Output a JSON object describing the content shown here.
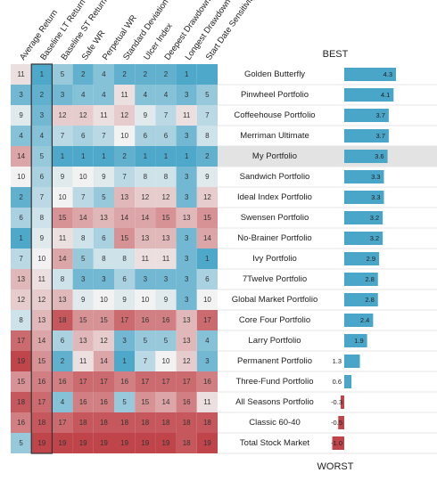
{
  "chart_data": {
    "type": "heatmap",
    "best_label": "BEST",
    "worst_label": "WORST",
    "columns": [
      "Average Return",
      "Baseline LT Return",
      "Baseline ST Return",
      "Safe WR",
      "Perpetual WR",
      "Standard Deviation",
      "Ulcer Index",
      "Deepest Drawdown",
      "Longest Drawdown",
      "Start Date Sensitivity"
    ],
    "rows": [
      {
        "name": "Golden Butterfly",
        "ranks": [
          11,
          1,
          5,
          2,
          4,
          2,
          2,
          2,
          1,
          null
        ],
        "score": 4.3
      },
      {
        "name": "Pinwheel Portfolio",
        "ranks": [
          3,
          2,
          3,
          4,
          4,
          11,
          4,
          4,
          3,
          5
        ],
        "score": 4.1
      },
      {
        "name": "Coffeehouse Portfolio",
        "ranks": [
          9,
          3,
          12,
          12,
          11,
          12,
          9,
          7,
          11,
          7
        ],
        "score": 3.7
      },
      {
        "name": "Merriman Ultimate",
        "ranks": [
          4,
          4,
          7,
          6,
          7,
          10,
          6,
          6,
          3,
          8
        ],
        "score": 3.7
      },
      {
        "name": "My Portfolio",
        "ranks": [
          14,
          5,
          1,
          1,
          1,
          2,
          1,
          1,
          1,
          2
        ],
        "score": 3.6
      },
      {
        "name": "Sandwich Portfolio",
        "ranks": [
          10,
          6,
          9,
          10,
          9,
          7,
          8,
          8,
          3,
          9
        ],
        "score": 3.3
      },
      {
        "name": "Ideal Index Portfolio",
        "ranks": [
          2,
          7,
          10,
          7,
          5,
          13,
          12,
          12,
          3,
          12
        ],
        "score": 3.3
      },
      {
        "name": "Swensen Portfolio",
        "ranks": [
          6,
          8,
          15,
          14,
          13,
          14,
          14,
          15,
          13,
          15
        ],
        "score": 3.2
      },
      {
        "name": "No-Brainer Portfolio",
        "ranks": [
          1,
          9,
          11,
          8,
          6,
          15,
          13,
          13,
          3,
          14
        ],
        "score": 3.2
      },
      {
        "name": "Ivy Portfolio",
        "ranks": [
          7,
          10,
          14,
          5,
          8,
          8,
          11,
          11,
          3,
          1
        ],
        "score": 2.9
      },
      {
        "name": "7Twelve Portfolio",
        "ranks": [
          13,
          11,
          8,
          3,
          3,
          6,
          3,
          3,
          3,
          6
        ],
        "score": 2.8
      },
      {
        "name": "Global Market Portfolio",
        "ranks": [
          12,
          12,
          13,
          9,
          10,
          9,
          10,
          9,
          3,
          10
        ],
        "score": 2.8
      },
      {
        "name": "Core Four Portfolio",
        "ranks": [
          8,
          13,
          18,
          15,
          15,
          17,
          16,
          16,
          13,
          17
        ],
        "score": 2.4
      },
      {
        "name": "Larry Portfolio",
        "ranks": [
          17,
          14,
          6,
          13,
          12,
          3,
          5,
          5,
          13,
          4
        ],
        "score": 1.9
      },
      {
        "name": "Permanent Portfolio",
        "ranks": [
          19,
          15,
          2,
          11,
          14,
          1,
          7,
          10,
          12,
          3
        ],
        "score": 1.3
      },
      {
        "name": "Three-Fund Portfolio",
        "ranks": [
          15,
          16,
          16,
          17,
          17,
          16,
          17,
          17,
          17,
          16
        ],
        "score": 0.6
      },
      {
        "name": "All Seasons Portfolio",
        "ranks": [
          18,
          17,
          4,
          16,
          16,
          5,
          15,
          14,
          16,
          11
        ],
        "score": -0.3
      },
      {
        "name": "Classic 60-40",
        "ranks": [
          16,
          18,
          17,
          18,
          18,
          18,
          18,
          18,
          18,
          18
        ],
        "score": -0.5
      },
      {
        "name": "Total Stock Market",
        "ranks": [
          5,
          19,
          19,
          19,
          19,
          19,
          19,
          19,
          18,
          19
        ],
        "score": -1.0
      }
    ],
    "highlight_row": "My Portfolio",
    "score_range": [
      -1.0,
      4.3
    ],
    "colors": {
      "best": "#4ea8c9",
      "mid": "#f2f2f2",
      "worst": "#c0454a",
      "bar_positive": "#4aa6c8",
      "bar_negative": "#c0454a",
      "highlight": "#e3e3e3"
    }
  }
}
